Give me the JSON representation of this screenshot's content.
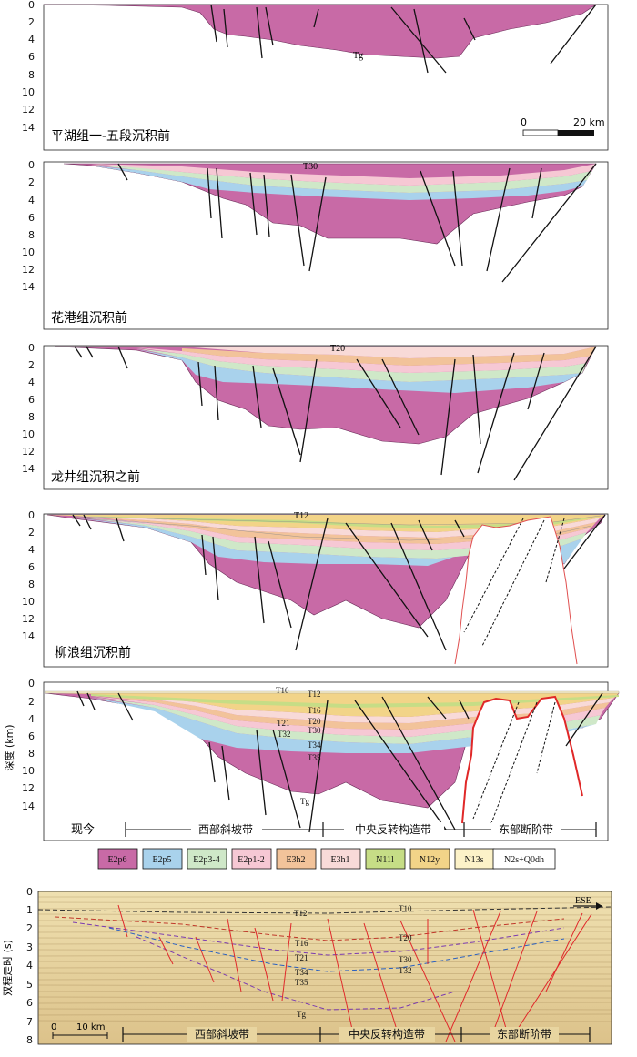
{
  "panels": [
    {
      "title": "平湖组一-五段沉积前",
      "depth_ticks": [
        "0",
        "2",
        "4",
        "6",
        "8",
        "10",
        "12",
        "14"
      ],
      "horizons": [
        "Tg"
      ],
      "scale_bar": {
        "start": "0",
        "end": "20 km"
      }
    },
    {
      "title": "花港组沉积前",
      "depth_ticks": [
        "0",
        "2",
        "4",
        "6",
        "8",
        "10",
        "12",
        "14"
      ],
      "horizons": [
        "T30"
      ]
    },
    {
      "title": "龙井组沉积之前",
      "depth_ticks": [
        "0",
        "2",
        "4",
        "6",
        "8",
        "10",
        "12",
        "14"
      ],
      "horizons": [
        "T20"
      ]
    },
    {
      "title": "柳浪组沉积前",
      "depth_ticks": [
        "0",
        "2",
        "4",
        "6",
        "8",
        "10",
        "12",
        "14"
      ],
      "horizons": [
        "T12"
      ]
    },
    {
      "title": "现今",
      "depth_ticks": [
        "0",
        "2",
        "4",
        "6",
        "8",
        "10",
        "12",
        "14"
      ],
      "axis_label": "深度 (km)",
      "horizons": [
        "T10",
        "T12",
        "T16",
        "T20",
        "T21",
        "T30",
        "T32",
        "T34",
        "T35",
        "Tg"
      ],
      "zones": [
        "西部斜坡带",
        "中央反转构造带",
        "东部断阶带"
      ]
    }
  ],
  "legend": [
    {
      "label": "E2p6",
      "color": "#c86aa6"
    },
    {
      "label": "E2p5",
      "color": "#a9d2ec"
    },
    {
      "label": "E2p3-4",
      "color": "#cfe8c8"
    },
    {
      "label": "E2p1-2",
      "color": "#f6c8d4"
    },
    {
      "label": "E3h2",
      "color": "#f2c39a"
    },
    {
      "label": "E3h1",
      "color": "#f8dad8"
    },
    {
      "label": "N11l",
      "color": "#c6dd86"
    },
    {
      "label": "N12y",
      "color": "#f2d488"
    },
    {
      "label": "N13s",
      "color": "#fcf2c8"
    },
    {
      "label": "N2s+Q0dh",
      "color": "#ffffff"
    }
  ],
  "seismic": {
    "axis_label": "双程走时 (s)",
    "time_ticks": [
      "0",
      "1",
      "2",
      "3",
      "4",
      "5",
      "6",
      "7",
      "8"
    ],
    "direction": "ESE",
    "scale": "10 km",
    "scale_start": "0",
    "horizons": [
      "T12",
      "T10",
      "T16",
      "T20",
      "T21",
      "T30",
      "T32",
      "T34",
      "T35",
      "Tg"
    ],
    "zones": [
      "西部斜坡带",
      "中央反转构造带",
      "东部断阶带"
    ]
  }
}
